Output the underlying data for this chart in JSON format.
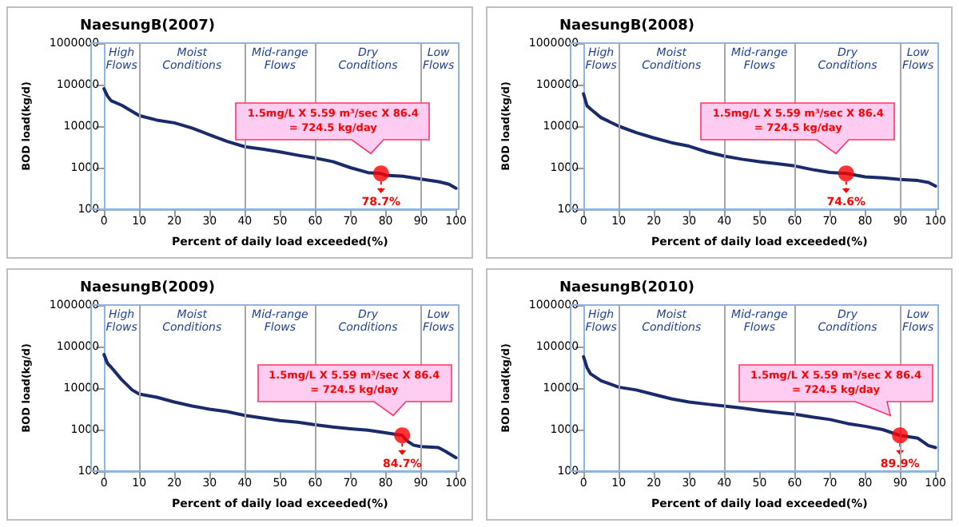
{
  "chart_data": [
    {
      "type": "line",
      "title": "NaesungB(2007)",
      "xlabel": "Percent of daily load exceeded(%)",
      "ylabel": "BOD load(kg/d)",
      "log": "y",
      "grid": false,
      "marker": "none",
      "line_style": "solid",
      "xlim": [
        0,
        100
      ],
      "xticks": [
        0,
        10,
        20,
        30,
        40,
        50,
        60,
        70,
        80,
        90,
        100
      ],
      "ylim": [
        100,
        1000000
      ],
      "yticks": [
        100,
        1000,
        10000,
        100000,
        1000000
      ],
      "series": [
        {
          "color": "#1b2a6b",
          "x": [
            0,
            1,
            2,
            5,
            10,
            15,
            20,
            25,
            30,
            35,
            40,
            45,
            50,
            55,
            60,
            65,
            70,
            75,
            78.7,
            80,
            85,
            90,
            95,
            98,
            100
          ],
          "values": [
            80000,
            53000,
            41000,
            32000,
            18000,
            14000,
            12000,
            9000,
            6200,
            4300,
            3200,
            2800,
            2400,
            2000,
            1700,
            1400,
            1000,
            760,
            724.5,
            660,
            620,
            530,
            460,
            400,
            320
          ]
        },
        {
          "type": "scatter",
          "marker": "circle",
          "color": "#ff0000",
          "x": [
            78.7
          ],
          "values": [
            724.5
          ]
        }
      ],
      "ref_lines": [
        {
          "axis": "x",
          "value": 10,
          "color": "#a6a6a6"
        },
        {
          "axis": "x",
          "value": 40,
          "color": "#a6a6a6"
        },
        {
          "axis": "x",
          "value": 60,
          "color": "#a6a6a6"
        },
        {
          "axis": "x",
          "value": 90,
          "color": "#a6a6a6"
        }
      ],
      "annotations": [
        "1.5mg/L X 5.59 m³/sec X 86.4\n= 724.5 kg/day",
        "78.7%",
        "High Flows",
        "Moist Conditions",
        "Mid-range Flows",
        "Dry Conditions",
        "Low Flows"
      ]
    },
    {
      "type": "line",
      "title": "NaesungB(2008)",
      "xlabel": "Percent of daily load exceeded(%)",
      "ylabel": "BOD load(kg/d)",
      "log": "y",
      "grid": false,
      "marker": "none",
      "line_style": "solid",
      "xlim": [
        0,
        100
      ],
      "xticks": [
        0,
        10,
        20,
        30,
        40,
        50,
        60,
        70,
        80,
        90,
        100
      ],
      "ylim": [
        100,
        1000000
      ],
      "yticks": [
        100,
        1000,
        10000,
        100000,
        1000000
      ],
      "series": [
        {
          "color": "#1b2a6b",
          "x": [
            0,
            1,
            2,
            5,
            10,
            15,
            20,
            25,
            30,
            35,
            40,
            45,
            50,
            55,
            60,
            65,
            70,
            74.6,
            80,
            85,
            90,
            95,
            98,
            100
          ],
          "values": [
            60000,
            31000,
            26000,
            16000,
            10000,
            7000,
            5200,
            4000,
            3300,
            2400,
            1900,
            1600,
            1400,
            1250,
            1100,
            900,
            770,
            724.5,
            600,
            570,
            520,
            490,
            440,
            360
          ]
        },
        {
          "type": "scatter",
          "marker": "circle",
          "color": "#ff0000",
          "x": [
            74.6
          ],
          "values": [
            724.5
          ]
        }
      ],
      "ref_lines": [
        {
          "axis": "x",
          "value": 10,
          "color": "#a6a6a6"
        },
        {
          "axis": "x",
          "value": 40,
          "color": "#a6a6a6"
        },
        {
          "axis": "x",
          "value": 60,
          "color": "#a6a6a6"
        },
        {
          "axis": "x",
          "value": 90,
          "color": "#a6a6a6"
        }
      ],
      "annotations": [
        "1.5mg/L X 5.59 m³/sec X 86.4\n= 724.5 kg/day",
        "74.6%",
        "High Flows",
        "Moist Conditions",
        "Mid-range Flows",
        "Dry Conditions",
        "Low Flows"
      ]
    },
    {
      "type": "line",
      "title": "NaesungB(2009)",
      "xlabel": "Percent of daily load exceeded(%)",
      "ylabel": "BOD load(kg/d)",
      "log": "y",
      "grid": false,
      "marker": "none",
      "line_style": "solid",
      "xlim": [
        0,
        100
      ],
      "xticks": [
        0,
        10,
        20,
        30,
        40,
        50,
        60,
        70,
        80,
        90,
        100
      ],
      "ylim": [
        100,
        1000000
      ],
      "yticks": [
        100,
        1000,
        10000,
        100000,
        1000000
      ],
      "series": [
        {
          "color": "#1b2a6b",
          "x": [
            0,
            1,
            2,
            5,
            8,
            10,
            15,
            20,
            25,
            30,
            35,
            40,
            45,
            50,
            55,
            60,
            65,
            70,
            75,
            80,
            84.7,
            86,
            88,
            90,
            95,
            97,
            100
          ],
          "values": [
            64000,
            39000,
            32000,
            16000,
            9000,
            7200,
            6000,
            4600,
            3700,
            3100,
            2700,
            2200,
            1900,
            1650,
            1500,
            1300,
            1150,
            1050,
            970,
            840,
            724.5,
            540,
            420,
            390,
            370,
            300,
            210
          ]
        },
        {
          "type": "scatter",
          "marker": "circle",
          "color": "#ff0000",
          "x": [
            84.7
          ],
          "values": [
            724.5
          ]
        }
      ],
      "ref_lines": [
        {
          "axis": "x",
          "value": 10,
          "color": "#a6a6a6"
        },
        {
          "axis": "x",
          "value": 40,
          "color": "#a6a6a6"
        },
        {
          "axis": "x",
          "value": 60,
          "color": "#a6a6a6"
        },
        {
          "axis": "x",
          "value": 90,
          "color": "#a6a6a6"
        }
      ],
      "annotations": [
        "1.5mg/L X 5.59 m³/sec X 86.4\n= 724.5 kg/day",
        "84.7%",
        "High Flows",
        "Moist Conditions",
        "Mid-range Flows",
        "Dry Conditions",
        "Low Flows"
      ]
    },
    {
      "type": "line",
      "title": "NaesungB(2010)",
      "xlabel": "Percent of daily load exceeded(%)",
      "ylabel": "BOD load(kg/d)",
      "log": "y",
      "grid": false,
      "marker": "none",
      "line_style": "solid",
      "xlim": [
        0,
        100
      ],
      "xticks": [
        0,
        10,
        20,
        30,
        40,
        50,
        60,
        70,
        80,
        90,
        100
      ],
      "ylim": [
        100,
        1000000
      ],
      "yticks": [
        100,
        1000,
        10000,
        100000,
        1000000
      ],
      "series": [
        {
          "color": "#1b2a6b",
          "x": [
            0,
            1,
            2,
            5,
            10,
            15,
            20,
            25,
            30,
            35,
            40,
            45,
            50,
            55,
            60,
            65,
            70,
            75,
            80,
            85,
            89.9,
            95,
            98,
            100
          ],
          "values": [
            57000,
            31000,
            22000,
            15000,
            10500,
            9000,
            7000,
            5500,
            4600,
            4100,
            3700,
            3300,
            2900,
            2600,
            2350,
            2000,
            1750,
            1400,
            1200,
            1000,
            724.5,
            620,
            410,
            370
          ]
        },
        {
          "type": "scatter",
          "marker": "circle",
          "color": "#ff0000",
          "x": [
            89.9
          ],
          "values": [
            724.5
          ]
        }
      ],
      "ref_lines": [
        {
          "axis": "x",
          "value": 10,
          "color": "#a6a6a6"
        },
        {
          "axis": "x",
          "value": 40,
          "color": "#a6a6a6"
        },
        {
          "axis": "x",
          "value": 60,
          "color": "#a6a6a6"
        },
        {
          "axis": "x",
          "value": 90,
          "color": "#a6a6a6"
        }
      ],
      "annotations": [
        "1.5mg/L X 5.59 m³/sec X 86.4\n= 724.5 kg/day",
        "89.9%",
        "High Flows",
        "Moist Conditions",
        "Mid-range Flows",
        "Dry Conditions",
        "Low Flows"
      ]
    }
  ]
}
